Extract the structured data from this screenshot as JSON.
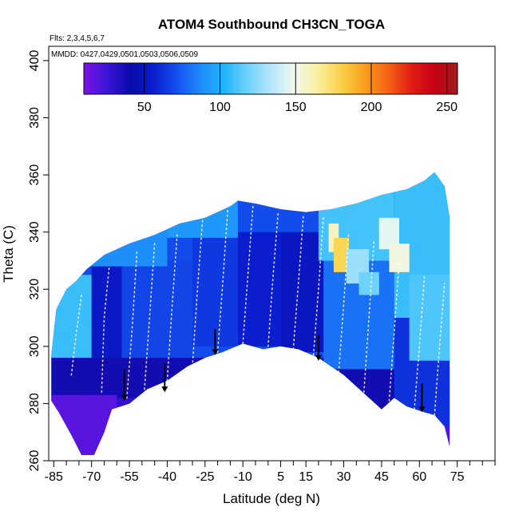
{
  "chart_data": {
    "type": "heatmap",
    "title": "ATOM4 Southbound CH3CN_TOGA",
    "flights_note": "Flts: 2,3,4,5,6,7",
    "dates_note": "MMDD: 0427,0429,0501,0503,0506,0509",
    "xlabel": "Latitude (deg N)",
    "ylabel": "Theta (C)",
    "xlim": [
      -87,
      90
    ],
    "ylim": [
      260,
      405
    ],
    "x_ticks": [
      -85,
      -70,
      -55,
      -40,
      -25,
      -10,
      5,
      15,
      30,
      45,
      60,
      75
    ],
    "x_minor_ticks": [
      -80,
      -75,
      -65,
      -60,
      -50,
      -45,
      -35,
      -30,
      -20,
      -15,
      -5,
      0,
      10,
      20,
      25,
      35,
      40,
      50,
      55,
      65,
      70,
      80,
      85,
      90
    ],
    "y_ticks": [
      260,
      280,
      300,
      320,
      340,
      360,
      380,
      400
    ],
    "colorbar": {
      "range": [
        10,
        257
      ],
      "ticks": [
        50,
        100,
        150,
        200,
        250
      ],
      "colors": [
        "#7a14e6",
        "#3a14d8",
        "#0a0aa8",
        "#0a1ed0",
        "#1452f0",
        "#1e8cfa",
        "#1eb4fa",
        "#6ed2fa",
        "#b4e6fa",
        "#f0f8f0",
        "#faf0a0",
        "#fad24a",
        "#faa01e",
        "#f56414",
        "#e11e14",
        "#c80014",
        "#a01e1e"
      ]
    },
    "boundary": {
      "top": [
        [
          -86,
          297
        ],
        [
          -84,
          313
        ],
        [
          -80,
          320
        ],
        [
          -76,
          323
        ],
        [
          -72,
          327
        ],
        [
          -65,
          332
        ],
        [
          -55,
          336
        ],
        [
          -45,
          339
        ],
        [
          -35,
          343
        ],
        [
          -25,
          345
        ],
        [
          -15,
          349
        ],
        [
          -12,
          351
        ],
        [
          -5,
          350
        ],
        [
          5,
          348
        ],
        [
          15,
          347
        ],
        [
          25,
          348
        ],
        [
          35,
          350
        ],
        [
          45,
          353
        ],
        [
          55,
          355
        ],
        [
          62,
          358
        ],
        [
          66,
          361
        ],
        [
          70,
          356
        ],
        [
          72,
          345
        ]
      ],
      "bottom": [
        [
          72,
          265
        ],
        [
          70,
          272
        ],
        [
          66,
          276
        ],
        [
          62,
          277
        ],
        [
          55,
          279
        ],
        [
          50,
          282
        ],
        [
          45,
          278
        ],
        [
          40,
          282
        ],
        [
          30,
          290
        ],
        [
          20,
          296
        ],
        [
          12,
          299
        ],
        [
          5,
          300
        ],
        [
          -2,
          299
        ],
        [
          -10,
          301
        ],
        [
          -18,
          298
        ],
        [
          -25,
          296
        ],
        [
          -32,
          293
        ],
        [
          -40,
          288
        ],
        [
          -48,
          285
        ],
        [
          -55,
          280
        ],
        [
          -62,
          278
        ],
        [
          -65,
          270
        ],
        [
          -69,
          262
        ],
        [
          -74,
          262
        ],
        [
          -78,
          269
        ],
        [
          -83,
          277
        ],
        [
          -86,
          281
        ]
      ]
    },
    "regions": [
      {
        "lat": [
          -86,
          72
        ],
        "theta": [
          250,
          360
        ],
        "value": 70
      },
      {
        "lat": [
          -86,
          72
        ],
        "theta": [
          250,
          296
        ],
        "value": 38
      },
      {
        "lat": [
          -86,
          -60
        ],
        "theta": [
          250,
          283
        ],
        "value": 18
      },
      {
        "lat": [
          -60,
          -45
        ],
        "theta": [
          250,
          282
        ],
        "value": 28
      },
      {
        "lat": [
          63,
          72
        ],
        "theta": [
          250,
          272
        ],
        "value": 20
      },
      {
        "lat": [
          -86,
          -70
        ],
        "theta": [
          296,
          325
        ],
        "value": 108
      },
      {
        "lat": [
          -70,
          -58
        ],
        "theta": [
          296,
          328
        ],
        "value": 52
      },
      {
        "lat": [
          -58,
          -30
        ],
        "theta": [
          296,
          330
        ],
        "value": 68
      },
      {
        "lat": [
          -30,
          -12
        ],
        "theta": [
          300,
          340
        ],
        "value": 64
      },
      {
        "lat": [
          -12,
          5
        ],
        "theta": [
          300,
          340
        ],
        "value": 56
      },
      {
        "lat": [
          5,
          22
        ],
        "theta": [
          298,
          340
        ],
        "value": 50
      },
      {
        "lat": [
          22,
          50
        ],
        "theta": [
          292,
          330
        ],
        "value": 80
      },
      {
        "lat": [
          50,
          72
        ],
        "theta": [
          272,
          310
        ],
        "value": 62
      },
      {
        "lat": [
          -75,
          -40
        ],
        "theta": [
          328,
          345
        ],
        "value": 88
      },
      {
        "lat": [
          -40,
          -12
        ],
        "theta": [
          338,
          352
        ],
        "value": 92
      },
      {
        "lat": [
          20,
          50
        ],
        "theta": [
          330,
          355
        ],
        "value": 110
      },
      {
        "lat": [
          50,
          72
        ],
        "theta": [
          310,
          362
        ],
        "value": 108
      },
      {
        "lat": [
          56,
          72
        ],
        "theta": [
          295,
          325
        ],
        "value": 112
      },
      {
        "lat": [
          24,
          28
        ],
        "theta": [
          333,
          343
        ],
        "value": 158
      },
      {
        "lat": [
          26,
          32
        ],
        "theta": [
          326,
          338
        ],
        "value": 178
      },
      {
        "lat": [
          31,
          40
        ],
        "theta": [
          322,
          334
        ],
        "value": 128
      },
      {
        "lat": [
          44,
          52
        ],
        "theta": [
          334,
          345
        ],
        "value": 146
      },
      {
        "lat": [
          48,
          56
        ],
        "theta": [
          326,
          336
        ],
        "value": 152
      },
      {
        "lat": [
          36,
          44
        ],
        "theta": [
          318,
          326
        ],
        "value": 118
      }
    ],
    "arrows": [
      {
        "lat": -57,
        "theta": [
          292,
          281
        ]
      },
      {
        "lat": -41,
        "theta": [
          294,
          284
        ]
      },
      {
        "lat": -21,
        "theta": [
          306,
          297
        ]
      },
      {
        "lat": 20,
        "theta": [
          304,
          295
        ]
      },
      {
        "lat": 61,
        "theta": [
          287,
          277
        ]
      }
    ],
    "flight_tracks": [
      [
        [
          -78,
          290
        ],
        [
          -76,
          305
        ],
        [
          -74,
          318
        ]
      ],
      [
        [
          -66,
          284
        ],
        [
          -65,
          310
        ],
        [
          -63,
          328
        ]
      ],
      [
        [
          -56,
          282
        ],
        [
          -54,
          305
        ],
        [
          -52,
          333
        ]
      ],
      [
        [
          -49,
          285
        ],
        [
          -47,
          310
        ],
        [
          -45,
          336
        ]
      ],
      [
        [
          -40,
          288
        ],
        [
          -38,
          315
        ],
        [
          -36,
          340
        ]
      ],
      [
        [
          -30,
          293
        ],
        [
          -28,
          320
        ],
        [
          -26,
          344
        ]
      ],
      [
        [
          -20,
          298
        ],
        [
          -18,
          322
        ],
        [
          -16,
          348
        ]
      ],
      [
        [
          -10,
          301
        ],
        [
          -8,
          325
        ],
        [
          -6,
          349
        ]
      ],
      [
        [
          0,
          300
        ],
        [
          2,
          325
        ],
        [
          4,
          347
        ]
      ],
      [
        [
          10,
          299
        ],
        [
          12,
          322
        ],
        [
          14,
          346
        ]
      ],
      [
        [
          18,
          297
        ],
        [
          20,
          320
        ],
        [
          22,
          346
        ]
      ],
      [
        [
          28,
          291
        ],
        [
          30,
          315
        ],
        [
          32,
          340
        ]
      ],
      [
        [
          38,
          284
        ],
        [
          40,
          310
        ],
        [
          42,
          337
        ]
      ],
      [
        [
          48,
          281
        ],
        [
          50,
          305
        ],
        [
          52,
          330
        ]
      ],
      [
        [
          58,
          278
        ],
        [
          60,
          300
        ],
        [
          62,
          325
        ]
      ],
      [
        [
          66,
          276
        ],
        [
          68,
          300
        ],
        [
          70,
          322
        ]
      ]
    ]
  }
}
